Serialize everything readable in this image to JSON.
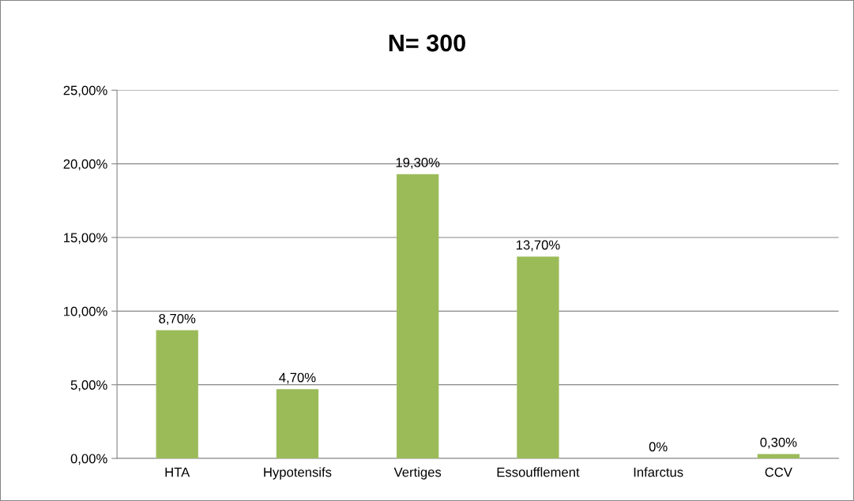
{
  "chart_data": {
    "type": "bar",
    "title": "N= 300",
    "categories": [
      "HTA",
      "Hypotensifs",
      "Vertiges",
      "Essoufflement",
      "Infarctus",
      "CCV"
    ],
    "values": [
      8.7,
      4.7,
      19.3,
      13.7,
      0,
      0.3
    ],
    "value_labels": [
      "8,70%",
      "4,70%",
      "19,30%",
      "13,70%",
      "0%",
      "0,30%"
    ],
    "color": "#9bbb59",
    "ylim": [
      0,
      25
    ],
    "yticks": [
      {
        "value": 0,
        "label": "0,00%"
      },
      {
        "value": 5,
        "label": "5,00%"
      },
      {
        "value": 10,
        "label": "10,00%"
      },
      {
        "value": 15,
        "label": "15,00%"
      },
      {
        "value": 20,
        "label": "20,00%"
      },
      {
        "value": 25,
        "label": "25,00%"
      }
    ],
    "grid": "y"
  }
}
